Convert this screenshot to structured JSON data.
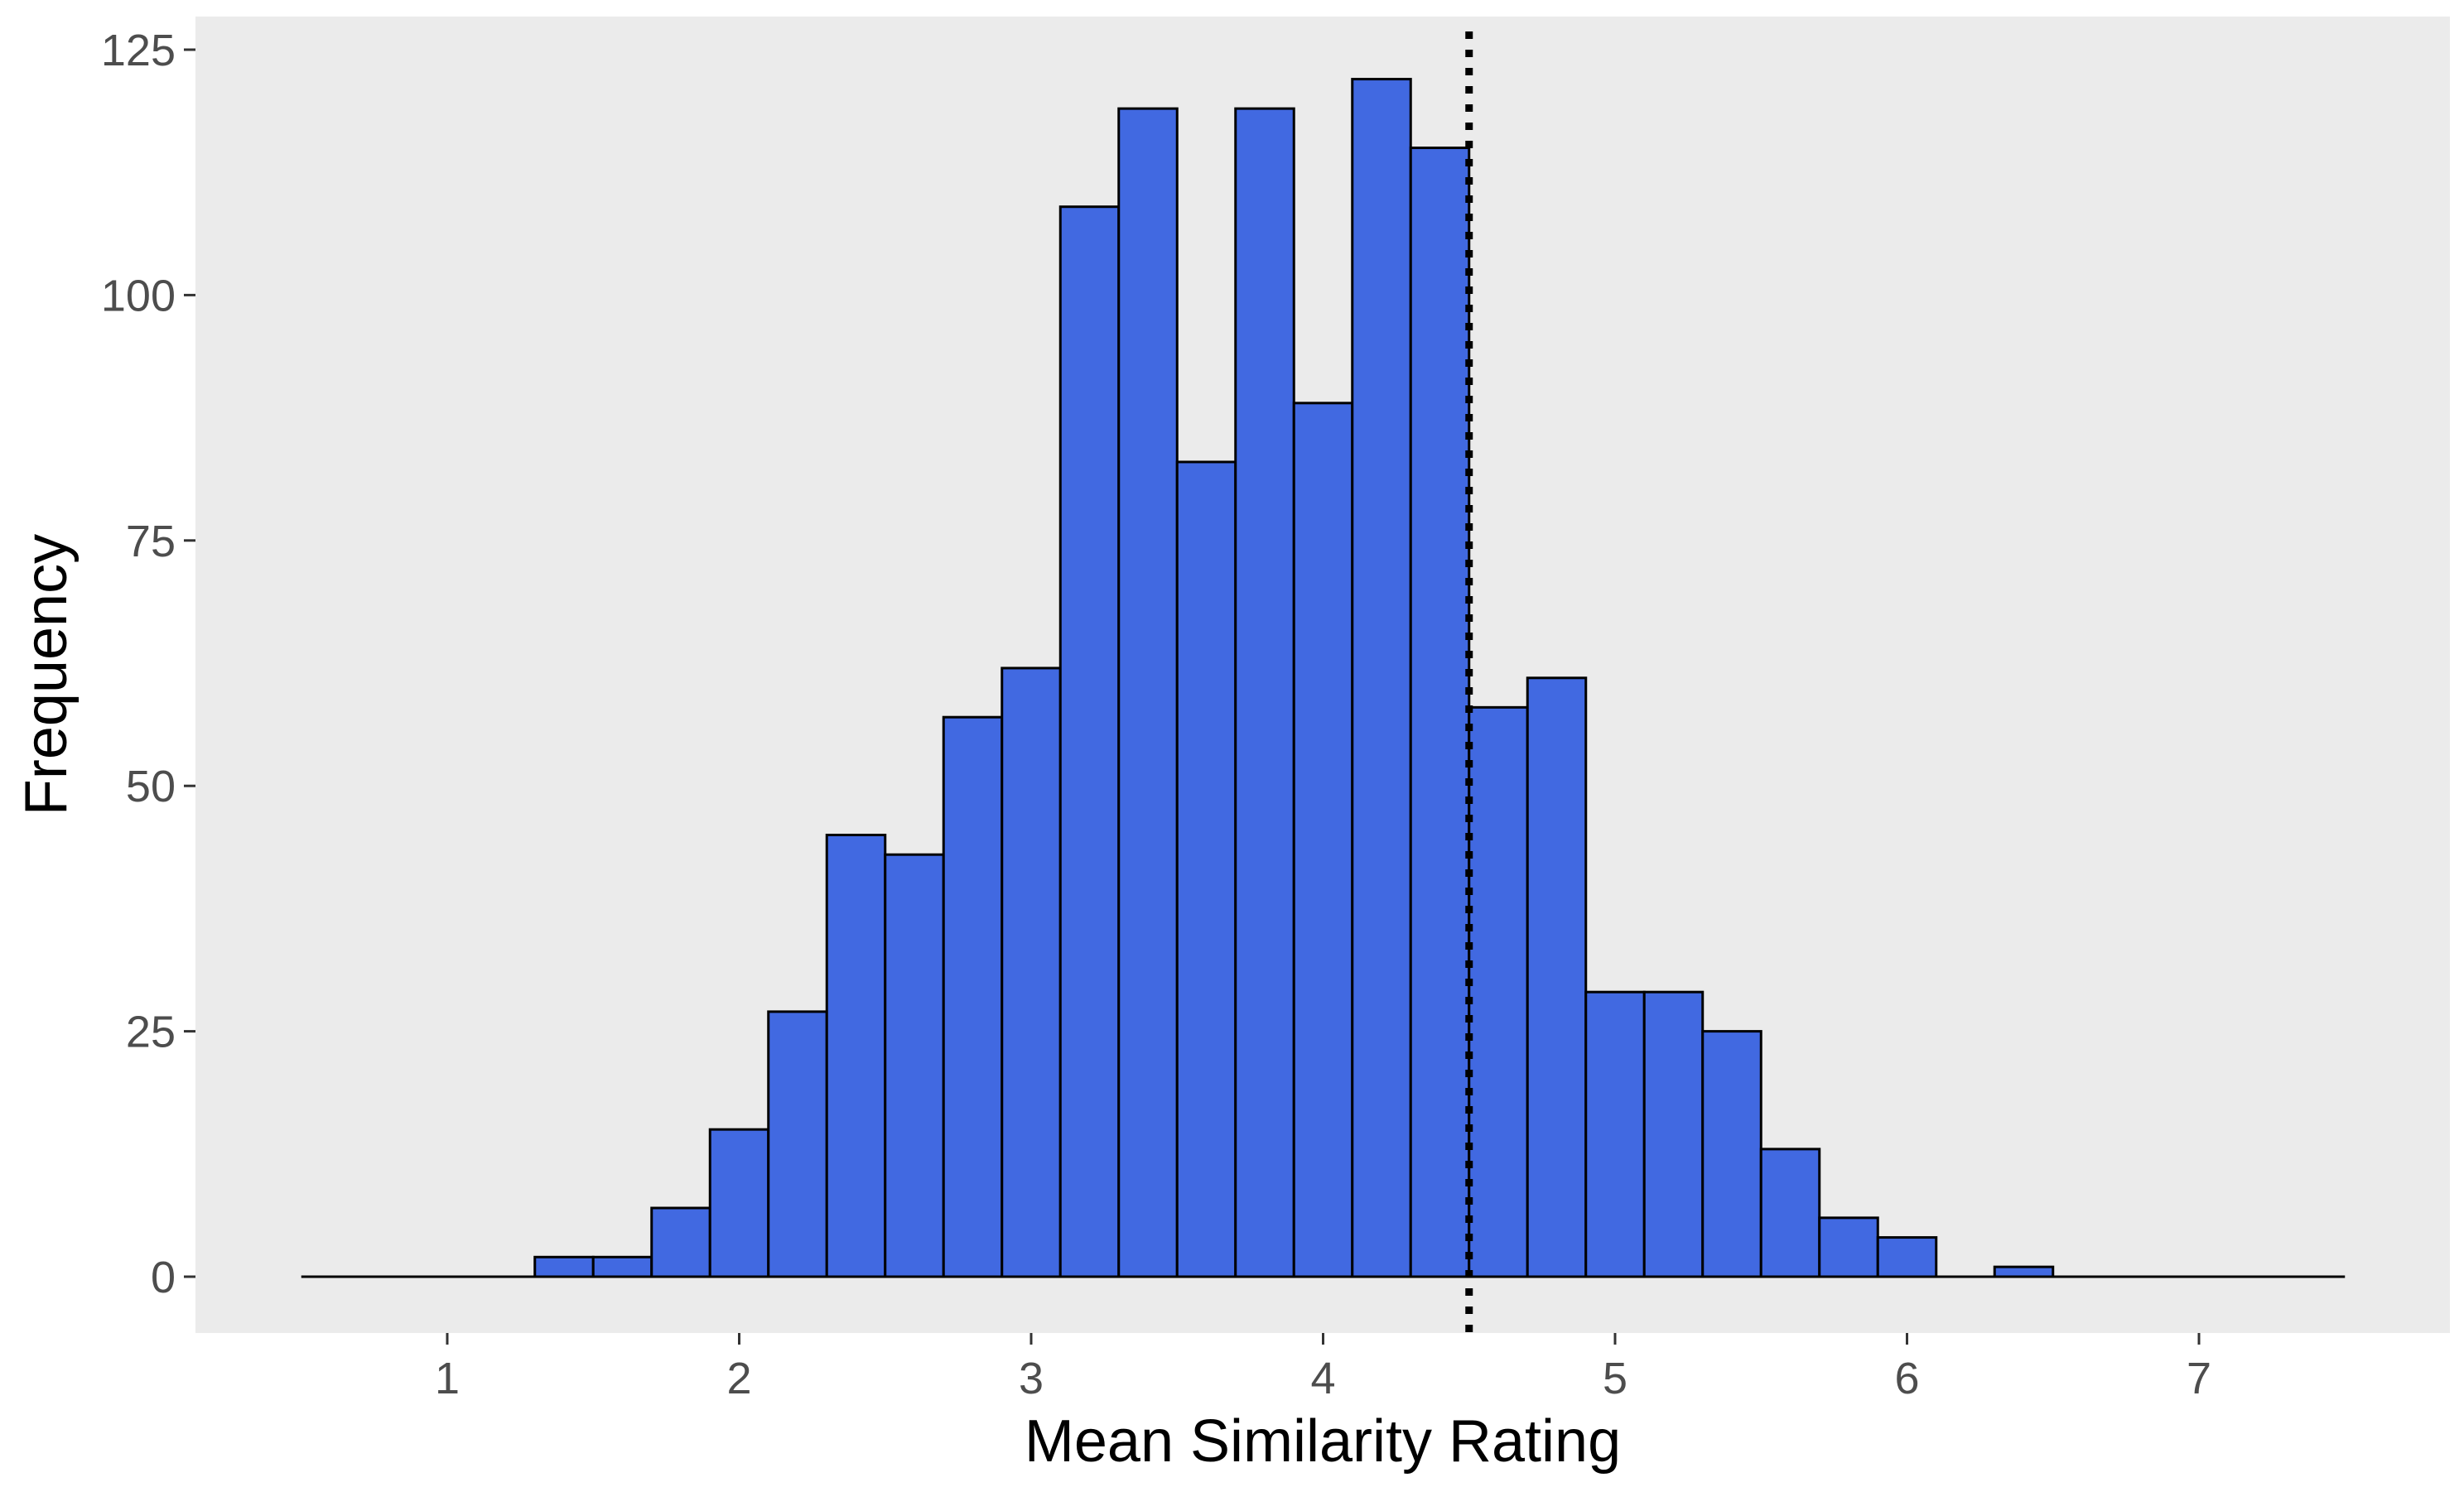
{
  "chart_data": {
    "type": "bar",
    "subtype": "histogram",
    "xlabel": "Mean Similarity Rating",
    "ylabel": "Frequency",
    "xlim": [
      0.5,
      7.5
    ],
    "ylim": [
      -6,
      127
    ],
    "x_ticks": [
      1,
      2,
      3,
      4,
      5,
      6,
      7
    ],
    "y_ticks": [
      0,
      25,
      50,
      75,
      100,
      125
    ],
    "bin_width": 0.2,
    "bins": [
      {
        "x0": 0.5,
        "x1": 0.7,
        "count": 0
      },
      {
        "x0": 0.7,
        "x1": 0.9,
        "count": 0
      },
      {
        "x0": 0.9,
        "x1": 1.1,
        "count": 0
      },
      {
        "x0": 1.1,
        "x1": 1.3,
        "count": 0
      },
      {
        "x0": 1.3,
        "x1": 1.5,
        "count": 2
      },
      {
        "x0": 1.5,
        "x1": 1.7,
        "count": 2
      },
      {
        "x0": 1.7,
        "x1": 1.9,
        "count": 7
      },
      {
        "x0": 1.9,
        "x1": 2.1,
        "count": 15
      },
      {
        "x0": 2.1,
        "x1": 2.3,
        "count": 27
      },
      {
        "x0": 2.3,
        "x1": 2.5,
        "count": 45
      },
      {
        "x0": 2.5,
        "x1": 2.7,
        "count": 43
      },
      {
        "x0": 2.7,
        "x1": 2.9,
        "count": 57
      },
      {
        "x0": 2.9,
        "x1": 3.1,
        "count": 62
      },
      {
        "x0": 3.1,
        "x1": 3.3,
        "count": 109
      },
      {
        "x0": 3.3,
        "x1": 3.5,
        "count": 119
      },
      {
        "x0": 3.5,
        "x1": 3.7,
        "count": 83
      },
      {
        "x0": 3.7,
        "x1": 3.9,
        "count": 119
      },
      {
        "x0": 3.9,
        "x1": 4.1,
        "count": 89
      },
      {
        "x0": 4.1,
        "x1": 4.3,
        "count": 122
      },
      {
        "x0": 4.3,
        "x1": 4.5,
        "count": 115
      },
      {
        "x0": 4.5,
        "x1": 4.7,
        "count": 58
      },
      {
        "x0": 4.7,
        "x1": 4.9,
        "count": 61
      },
      {
        "x0": 4.9,
        "x1": 5.1,
        "count": 29
      },
      {
        "x0": 5.1,
        "x1": 5.3,
        "count": 29
      },
      {
        "x0": 5.3,
        "x1": 5.5,
        "count": 25
      },
      {
        "x0": 5.5,
        "x1": 5.7,
        "count": 13
      },
      {
        "x0": 5.7,
        "x1": 5.9,
        "count": 6
      },
      {
        "x0": 5.9,
        "x1": 6.1,
        "count": 4
      },
      {
        "x0": 6.1,
        "x1": 6.3,
        "count": 0
      },
      {
        "x0": 6.3,
        "x1": 6.5,
        "count": 1
      },
      {
        "x0": 6.5,
        "x1": 6.7,
        "count": 0
      },
      {
        "x0": 6.7,
        "x1": 6.9,
        "count": 0
      },
      {
        "x0": 6.9,
        "x1": 7.1,
        "count": 0
      },
      {
        "x0": 7.1,
        "x1": 7.3,
        "count": 0
      },
      {
        "x0": 7.3,
        "x1": 7.5,
        "count": 0
      }
    ],
    "reference_line": {
      "x": 4.5,
      "style": "dotted",
      "color": "#000000"
    },
    "colors": {
      "bar_fill": "#4169e1",
      "bar_stroke": "#000000",
      "panel_background": "#ebebeb"
    },
    "grid": false,
    "legend": "none"
  }
}
